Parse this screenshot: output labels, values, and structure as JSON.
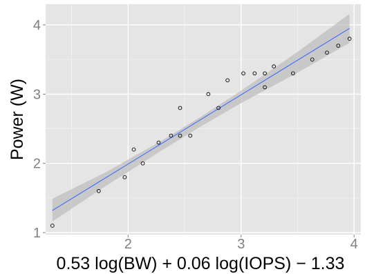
{
  "chart_data": {
    "type": "scatter",
    "title": "",
    "xlabel": "0.53 log(BW) + 0.06 log(IOPS) − 1.33",
    "ylabel": "Power (W)",
    "xlim": [
      1.27,
      4.06
    ],
    "ylim": [
      0.97,
      4.3
    ],
    "x_ticks": [
      2,
      3,
      4
    ],
    "x_tick_labels": [
      "2",
      "3",
      "4"
    ],
    "y_ticks": [
      1,
      2,
      3,
      4
    ],
    "y_tick_labels": [
      "1",
      "2",
      "3",
      "4"
    ],
    "grid": true,
    "points": [
      {
        "x": 1.33,
        "y": 1.1
      },
      {
        "x": 1.74,
        "y": 1.6
      },
      {
        "x": 1.97,
        "y": 1.8
      },
      {
        "x": 2.05,
        "y": 2.2
      },
      {
        "x": 2.13,
        "y": 2.0
      },
      {
        "x": 2.27,
        "y": 2.3
      },
      {
        "x": 2.38,
        "y": 2.4
      },
      {
        "x": 2.46,
        "y": 2.8
      },
      {
        "x": 2.46,
        "y": 2.4
      },
      {
        "x": 2.55,
        "y": 2.4
      },
      {
        "x": 2.71,
        "y": 3.0
      },
      {
        "x": 2.8,
        "y": 2.8
      },
      {
        "x": 2.88,
        "y": 3.2
      },
      {
        "x": 3.02,
        "y": 3.3
      },
      {
        "x": 3.12,
        "y": 3.3
      },
      {
        "x": 3.21,
        "y": 3.3
      },
      {
        "x": 3.21,
        "y": 3.1
      },
      {
        "x": 3.29,
        "y": 3.4
      },
      {
        "x": 3.46,
        "y": 3.3
      },
      {
        "x": 3.63,
        "y": 3.5
      },
      {
        "x": 3.76,
        "y": 3.6
      },
      {
        "x": 3.86,
        "y": 3.7
      },
      {
        "x": 3.96,
        "y": 3.8
      }
    ],
    "fit_line": {
      "x": [
        1.33,
        3.96
      ],
      "y": [
        1.32,
        3.95
      ]
    },
    "confidence_band": {
      "x": [
        1.33,
        1.8,
        2.3,
        2.65,
        3.0,
        3.5,
        3.96
      ],
      "lower": [
        1.16,
        1.67,
        2.19,
        2.54,
        2.87,
        3.31,
        3.74
      ],
      "upper": [
        1.49,
        1.87,
        2.33,
        2.68,
        3.05,
        3.61,
        4.16
      ]
    },
    "colors": {
      "panel": "#e5e5e5",
      "grid": "#ffffff",
      "band": "#bdbdbd",
      "line": "#3366ff",
      "point_stroke": "#000000",
      "tick_text": "#7f7f7f"
    }
  }
}
